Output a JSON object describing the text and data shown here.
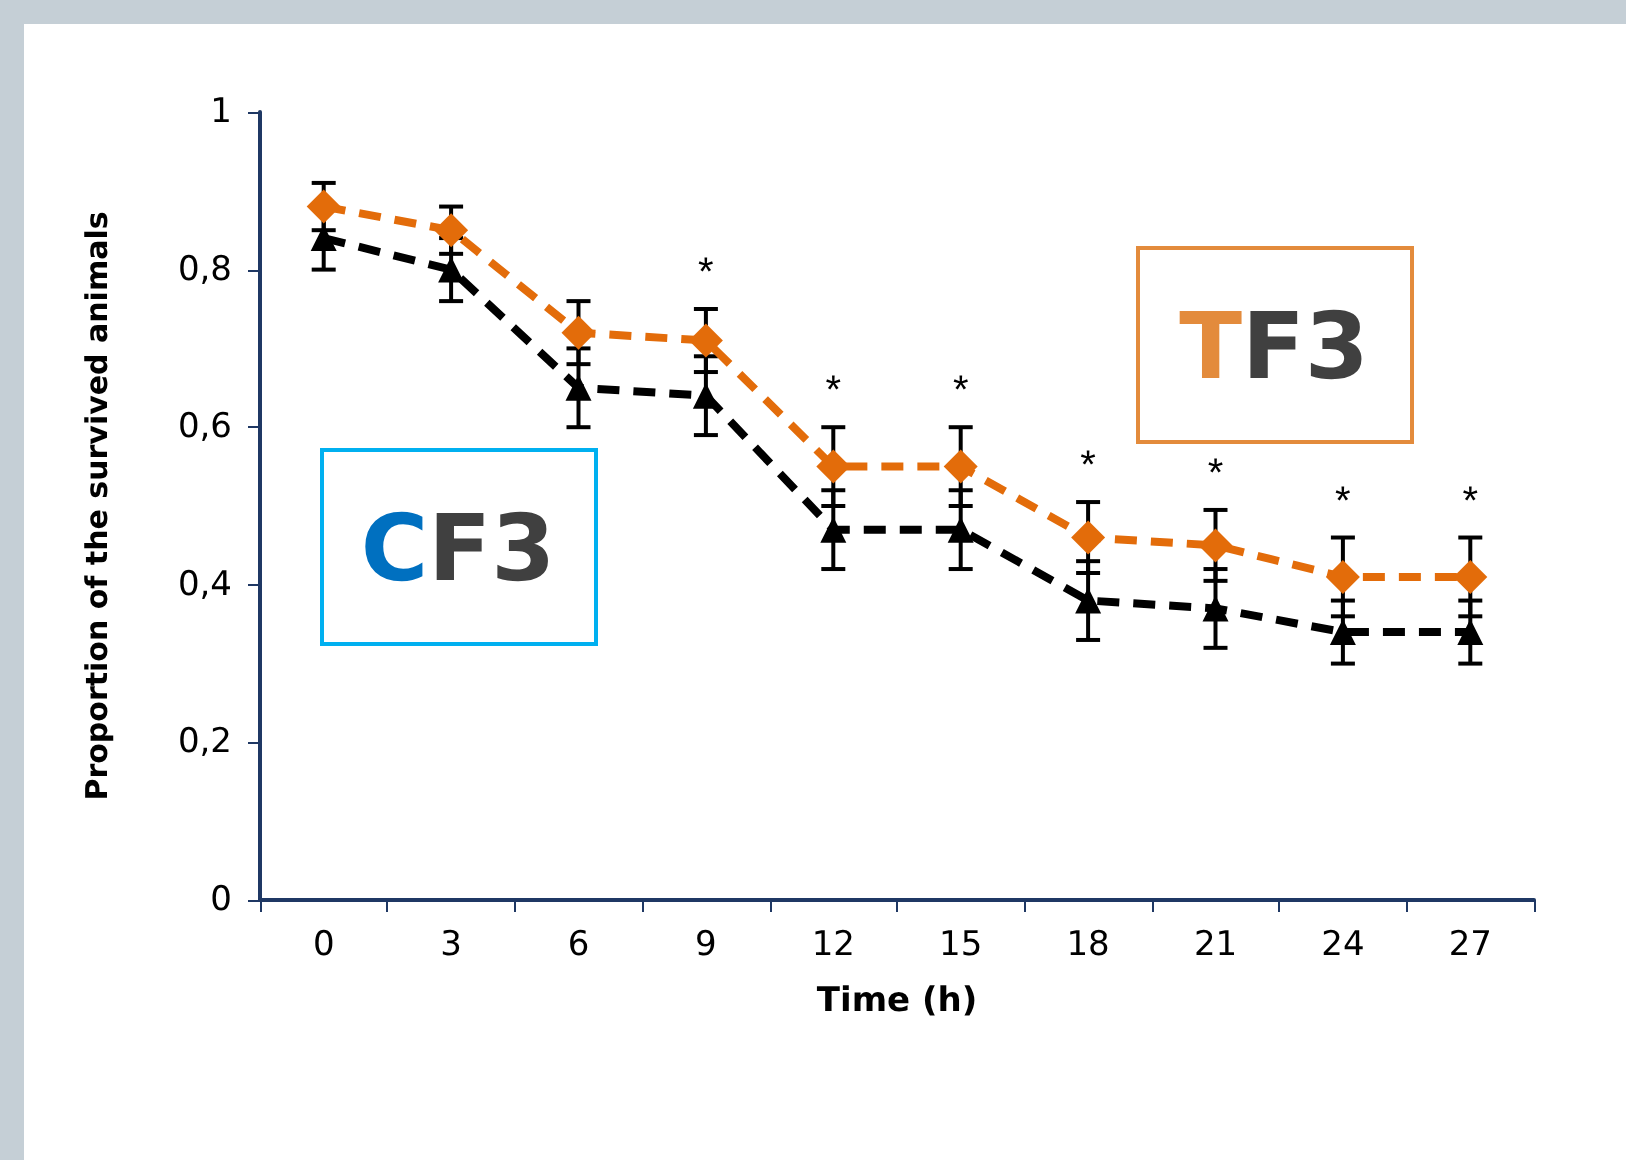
{
  "chart_data": {
    "type": "line",
    "xlabel": "Time (h)",
    "ylabel": "Proportion of the survived animals",
    "categories": [
      "0",
      "3",
      "6",
      "9",
      "12",
      "15",
      "18",
      "21",
      "24",
      "27"
    ],
    "series": [
      {
        "name": "CF3",
        "color": "#000000",
        "marker": "triangle",
        "line_style": "dashed",
        "values": [
          0.84,
          0.8,
          0.65,
          0.64,
          0.47,
          0.47,
          0.38,
          0.37,
          0.34,
          0.34
        ],
        "errors": [
          0.04,
          0.04,
          0.05,
          0.05,
          0.05,
          0.05,
          0.05,
          0.05,
          0.04,
          0.04
        ]
      },
      {
        "name": "TF3",
        "color": "#e36c0a",
        "marker": "diamond",
        "line_style": "dashed",
        "values": [
          0.88,
          0.85,
          0.72,
          0.71,
          0.55,
          0.55,
          0.46,
          0.45,
          0.41,
          0.41
        ],
        "errors": [
          0.03,
          0.03,
          0.04,
          0.04,
          0.05,
          0.05,
          0.045,
          0.045,
          0.05,
          0.05
        ]
      }
    ],
    "ylim": [
      0,
      1
    ],
    "yticks": [
      0,
      {
        "value": 0.2,
        "label": "0,2"
      },
      {
        "value": 0.4,
        "label": "0,4"
      },
      {
        "value": 0.6,
        "label": "0,6"
      },
      {
        "value": 0.8,
        "label": "0,8"
      },
      1
    ],
    "grid": false,
    "annotations": [
      "*",
      "*",
      "*",
      "*",
      "*",
      "*",
      "*"
    ]
  }
}
